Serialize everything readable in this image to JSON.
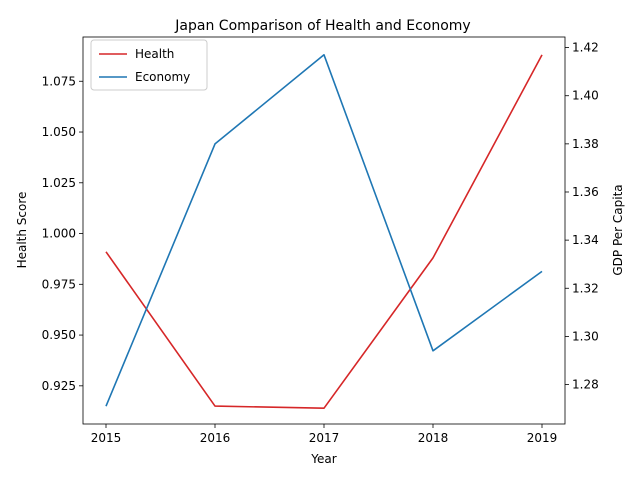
{
  "chart_data": {
    "type": "line",
    "title": "Japan Comparison of Health and Economy",
    "xlabel": "Year",
    "ylabel_left": "Health Score",
    "ylabel_right": "GDP Per Capita",
    "x": [
      "2015",
      "2016",
      "2017",
      "2018",
      "2019"
    ],
    "series": [
      {
        "name": "Health",
        "axis": "left",
        "color": "#d62728",
        "values": [
          0.991,
          0.915,
          0.914,
          0.988,
          1.088
        ]
      },
      {
        "name": "Economy",
        "axis": "right",
        "color": "#1f77b4",
        "values": [
          1.271,
          1.38,
          1.417,
          1.294,
          1.327
        ]
      }
    ],
    "ylim_left": [
      0.9062,
      1.0968
    ],
    "ylim_right": [
      1.2636,
      1.4244
    ],
    "yticks_left": [
      "0.925",
      "0.950",
      "0.975",
      "1.000",
      "1.025",
      "1.050",
      "1.075"
    ],
    "yticks_right": [
      "1.28",
      "1.30",
      "1.32",
      "1.34",
      "1.36",
      "1.38",
      "1.40",
      "1.42"
    ],
    "grid": false,
    "legend_position": "upper left"
  }
}
